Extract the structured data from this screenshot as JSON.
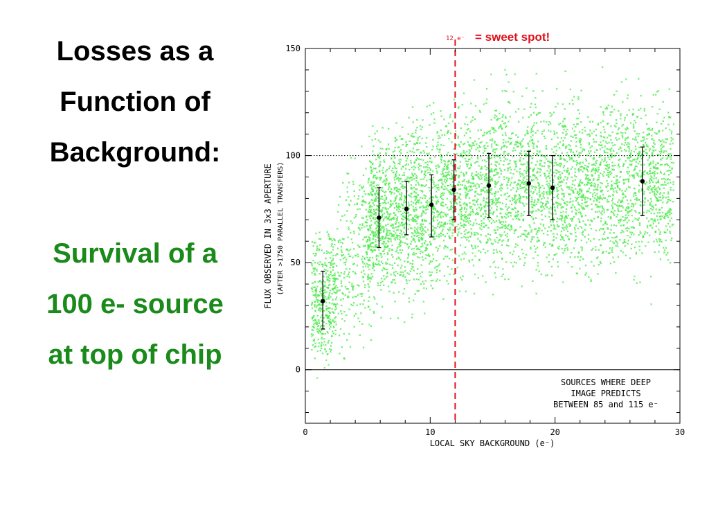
{
  "slide": {
    "title_lines": [
      "Losses as a",
      "Function of",
      "Background:"
    ],
    "subtitle_lines": [
      "Survival of a",
      "100 e- source",
      "at top of chip"
    ],
    "subtitle_color": "#1a8a1a"
  },
  "annotation": {
    "marker_label": "12 e⁻",
    "sweet_spot": "= sweet spot!",
    "color": "#e0101a"
  },
  "chart_data": {
    "type": "scatter",
    "xlabel": "LOCAL SKY BACKGROUND (e⁻)",
    "ylabel": "FLUX OBSERVED IN 3x3 APERTURE",
    "ylabel2": "(AFTER >1750 PARALLEL TRANSFERS)",
    "xlim": [
      0,
      30
    ],
    "ylim": [
      -25,
      150
    ],
    "xticks": [
      "0",
      "10",
      "20",
      "30"
    ],
    "yticks": [
      "0",
      "50",
      "100",
      "150"
    ],
    "reference_lines": {
      "vertical_x": 12,
      "horizontal_y": 100,
      "zero_y": 0
    },
    "scatter_color": "#33e633",
    "binned_means": [
      {
        "x": 1.4,
        "y": 32,
        "lo": 19,
        "hi": 46
      },
      {
        "x": 5.9,
        "y": 71,
        "lo": 57,
        "hi": 85
      },
      {
        "x": 8.1,
        "y": 75,
        "lo": 63,
        "hi": 88
      },
      {
        "x": 10.1,
        "y": 77,
        "lo": 62,
        "hi": 91
      },
      {
        "x": 11.9,
        "y": 84,
        "lo": 70,
        "hi": 98
      },
      {
        "x": 14.7,
        "y": 86,
        "lo": 71,
        "hi": 101
      },
      {
        "x": 17.9,
        "y": 87,
        "lo": 72,
        "hi": 102
      },
      {
        "x": 19.8,
        "y": 85,
        "lo": 70,
        "hi": 100
      },
      {
        "x": 27.0,
        "y": 88,
        "lo": 72,
        "hi": 104
      }
    ],
    "legend_box": [
      "SOURCES WHERE DEEP",
      "IMAGE PREDICTS",
      "BETWEEN 85 and 115 e⁻"
    ],
    "legend_position": "bottom-right"
  }
}
